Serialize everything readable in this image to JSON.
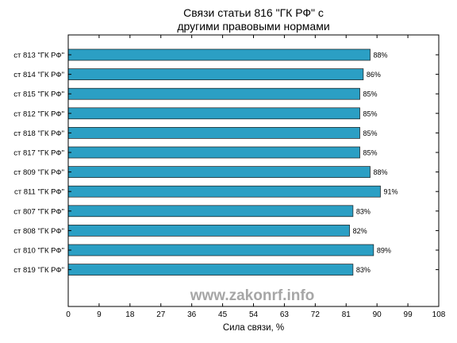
{
  "chart_data": {
    "type": "bar",
    "orientation": "horizontal",
    "title": [
      "Связи статьи 816 \"ГК РФ\" с",
      "другими правовыми нормами"
    ],
    "xlabel": "Сила связи, %",
    "ylabel": "",
    "xlim": [
      0,
      108
    ],
    "xticks": [
      0,
      9,
      18,
      27,
      36,
      45,
      54,
      63,
      72,
      81,
      90,
      99,
      108
    ],
    "grid": false,
    "bar_color": "#2b9fc4",
    "categories": [
      "ст 813 \"ГК РФ\"",
      "ст 814 \"ГК РФ\"",
      "ст 815 \"ГК РФ\"",
      "ст 812 \"ГК РФ\"",
      "ст 818 \"ГК РФ\"",
      "ст 817 \"ГК РФ\"",
      "ст 809 \"ГК РФ\"",
      "ст 811 \"ГК РФ\"",
      "ст 807 \"ГК РФ\"",
      "ст 808 \"ГК РФ\"",
      "ст 810 \"ГК РФ\"",
      "ст 819 \"ГК РФ\""
    ],
    "values": [
      88,
      86,
      85,
      85,
      85,
      85,
      88,
      91,
      83,
      82,
      89,
      83
    ],
    "value_labels": [
      "88%",
      "86%",
      "85%",
      "85%",
      "85%",
      "85%",
      "88%",
      "91%",
      "83%",
      "82%",
      "89%",
      "83%"
    ]
  },
  "watermark": "www.zakonrf.info"
}
